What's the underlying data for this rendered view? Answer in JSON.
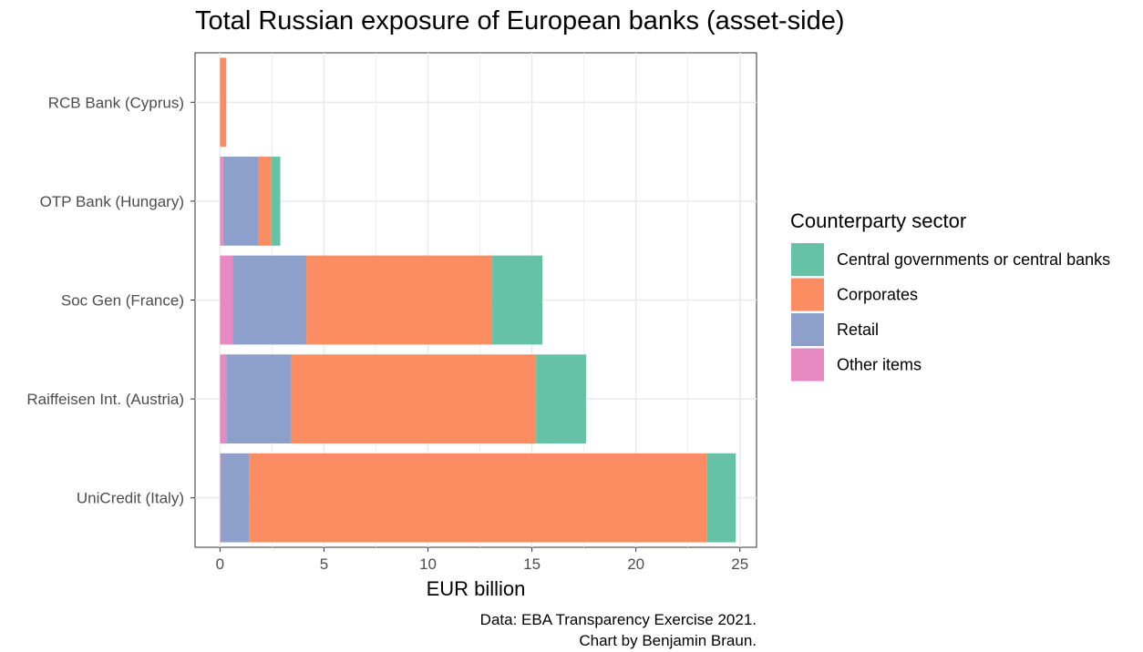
{
  "chart_data": {
    "type": "bar",
    "orientation": "horizontal",
    "stacked": true,
    "title": "Total Russian exposure of European banks (asset-side)",
    "xlabel": "EUR billion",
    "ylabel": "",
    "xlim": [
      -1.2,
      25.8
    ],
    "xticks": [
      "0",
      "5",
      "10",
      "15",
      "20",
      "25"
    ],
    "grid": true,
    "legend_position": "right",
    "legend_title": "Counterparty sector",
    "categories": [
      "RCB Bank (Cyprus)",
      "OTP Bank (Hungary)",
      "Soc Gen (France)",
      "Raiffeisen Int. (Austria)",
      "UniCredit (Italy)"
    ],
    "series": [
      {
        "name": "Other items",
        "color": "#e78ac3",
        "values": [
          0.0,
          0.15,
          0.6,
          0.3,
          0.05
        ]
      },
      {
        "name": "Retail",
        "color": "#8da0cb",
        "values": [
          0.0,
          1.7,
          3.55,
          3.1,
          1.35
        ]
      },
      {
        "name": "Corporates",
        "color": "#fc8d62",
        "values": [
          0.3,
          0.6,
          8.9,
          11.8,
          22.0
        ]
      },
      {
        "name": "Central governments or central banks",
        "color": "#66c2a5",
        "values": [
          0.0,
          0.45,
          2.45,
          2.4,
          1.4
        ]
      }
    ],
    "legend_order": [
      "Central governments or central banks",
      "Corporates",
      "Retail",
      "Other items"
    ],
    "caption": [
      "Data: EBA Transparency Exercise 2021.",
      "Chart by Benjamin Braun."
    ]
  }
}
